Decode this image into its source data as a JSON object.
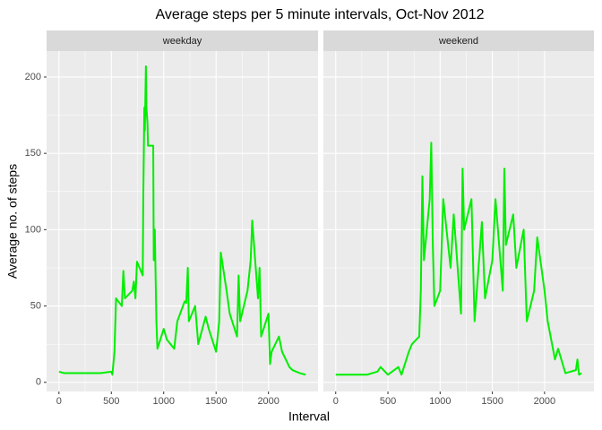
{
  "chart_data": {
    "type": "line",
    "title": "Average steps per 5 minute intervals, Oct-Nov 2012",
    "x_label": "Interval",
    "y_label": "Average no. of steps",
    "xlim": [
      -118,
      2473
    ],
    "xticks": [
      0,
      500,
      1000,
      1500,
      2000
    ],
    "ylim": [
      -6,
      217
    ],
    "yticks": [
      0,
      50,
      100,
      150,
      200
    ],
    "grid": true,
    "facets": [
      {
        "name": "weekday",
        "color": "#00ee00",
        "x": [
          0,
          50,
          100,
          200,
          300,
          400,
          500,
          510,
          530,
          545,
          600,
          615,
          630,
          700,
          715,
          730,
          745,
          800,
          805,
          815,
          820,
          830,
          835,
          845,
          850,
          900,
          905,
          915,
          930,
          940,
          1000,
          1030,
          1100,
          1130,
          1200,
          1215,
          1230,
          1240,
          1300,
          1330,
          1400,
          1430,
          1500,
          1530,
          1545,
          1600,
          1630,
          1700,
          1715,
          1730,
          1800,
          1830,
          1845,
          1900,
          1915,
          1930,
          2000,
          2015,
          2030,
          2100,
          2130,
          2200,
          2230,
          2300,
          2355
        ],
        "values": [
          7,
          6,
          6,
          6,
          6,
          6,
          7,
          5,
          20,
          55,
          50,
          73,
          55,
          60,
          66,
          55,
          79,
          70,
          120,
          180,
          165,
          207,
          180,
          170,
          155,
          155,
          80,
          100,
          40,
          22,
          35,
          28,
          22,
          40,
          53,
          52,
          75,
          40,
          50,
          25,
          43,
          35,
          20,
          40,
          85,
          60,
          45,
          30,
          70,
          40,
          60,
          80,
          106,
          55,
          75,
          30,
          45,
          12,
          20,
          30,
          20,
          10,
          8,
          6,
          5
        ]
      },
      {
        "name": "weekend",
        "color": "#00ee00",
        "x": [
          0,
          15,
          100,
          200,
          300,
          400,
          430,
          500,
          600,
          630,
          700,
          730,
          800,
          815,
          830,
          845,
          900,
          915,
          930,
          945,
          1000,
          1030,
          1100,
          1130,
          1200,
          1215,
          1230,
          1300,
          1330,
          1400,
          1430,
          1500,
          1530,
          1600,
          1615,
          1630,
          1700,
          1730,
          1800,
          1830,
          1900,
          1930,
          2000,
          2030,
          2100,
          2130,
          2200,
          2300,
          2315,
          2330,
          2355
        ],
        "values": [
          5,
          5,
          5,
          5,
          5,
          7,
          10,
          5,
          10,
          5,
          20,
          25,
          30,
          60,
          135,
          80,
          120,
          157,
          90,
          50,
          60,
          120,
          75,
          110,
          45,
          140,
          100,
          120,
          40,
          105,
          55,
          80,
          120,
          60,
          140,
          90,
          110,
          75,
          100,
          40,
          60,
          95,
          60,
          40,
          15,
          22,
          6,
          8,
          15,
          5,
          6
        ]
      }
    ]
  }
}
